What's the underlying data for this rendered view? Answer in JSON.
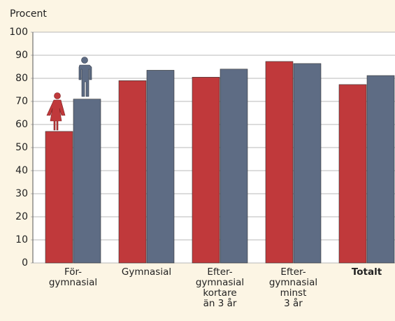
{
  "chart_data": {
    "type": "bar",
    "y_label": "Procent",
    "categories": [
      "För-\ngymnasial",
      "Gymnasial",
      "Efter-\ngymnasial\nkortare\nän 3 år",
      "Efter-\ngymnasial\nminst\n3 år",
      "Totalt"
    ],
    "series": [
      {
        "color": "#c0393b",
        "values": [
          57,
          79,
          80.5,
          87.3,
          77.3
        ]
      },
      {
        "color": "#5e6c84",
        "values": [
          71,
          83.5,
          84,
          86.4,
          81.2
        ]
      }
    ],
    "ylim": [
      0,
      100
    ],
    "yticks": [
      0,
      10,
      20,
      30,
      40,
      50,
      60,
      70,
      80,
      90,
      100
    ],
    "grid": true
  }
}
